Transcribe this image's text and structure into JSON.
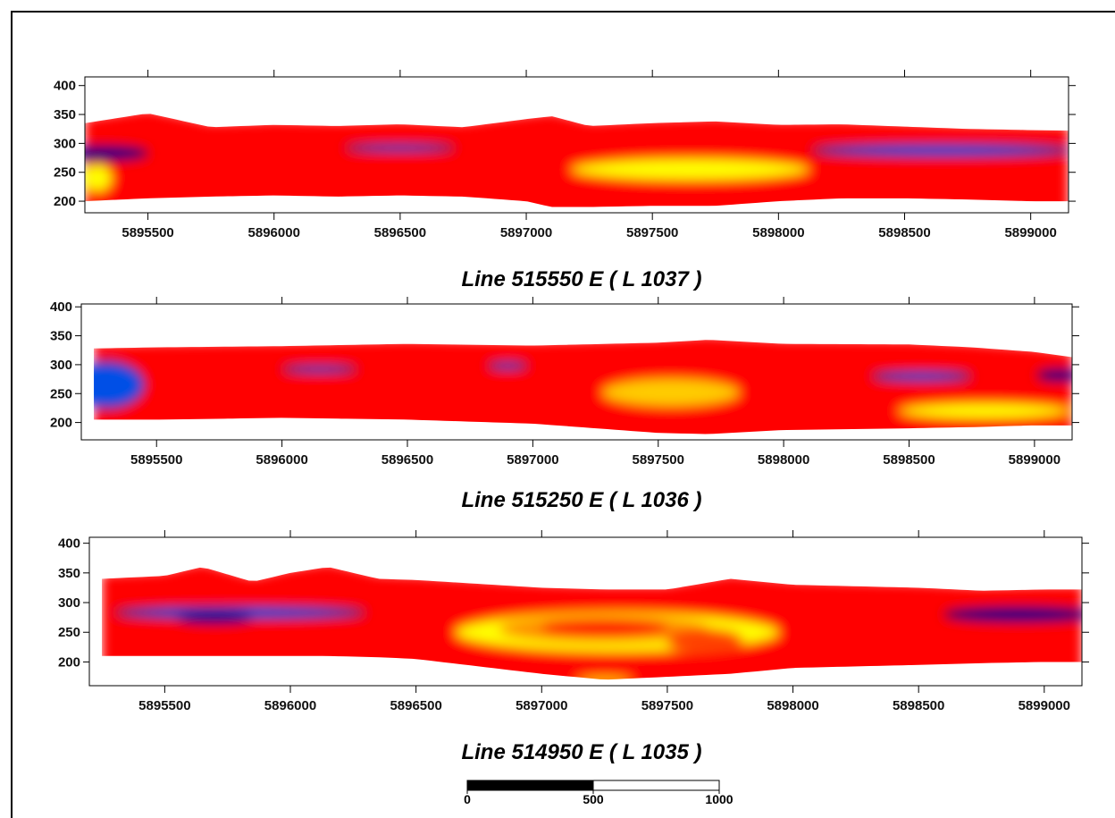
{
  "chart_data": [
    {
      "type": "heatmap",
      "title": "Line 515550 E ( L 1037 )",
      "xlim": [
        5895250,
        5899150
      ],
      "ylim": [
        180,
        415
      ],
      "x_ticks": [
        5895500,
        5896000,
        5896500,
        5897000,
        5897500,
        5898000,
        5898500,
        5899000
      ],
      "y_ticks": [
        200,
        250,
        300,
        350,
        400
      ],
      "colormap": [
        "#00008b",
        "#0050e6",
        "#00e5ee",
        "#00a000",
        "#009900",
        "#ffff00",
        "#ff8c00",
        "#ff0000"
      ],
      "surface_x": [
        5895250,
        5895500,
        5895750,
        5896000,
        5896250,
        5896500,
        5896750,
        5897000,
        5897100,
        5897250,
        5897500,
        5897750,
        5898000,
        5898250,
        5898500,
        5898750,
        5899000,
        5899150
      ],
      "surface_y": [
        335,
        352,
        328,
        332,
        330,
        333,
        328,
        342,
        347,
        330,
        335,
        338,
        332,
        333,
        329,
        325,
        323,
        322
      ],
      "bottom_y": [
        200,
        205,
        208,
        210,
        208,
        210,
        208,
        200,
        190,
        190,
        192,
        192,
        200,
        205,
        205,
        203,
        200,
        200
      ],
      "bands": [
        {
          "offsets": [
            0,
            10,
            20,
            30,
            55,
            70,
            85,
            105,
            125
          ],
          "colors": [
            "#ff0000",
            "#ff8c00",
            "#ffff00",
            "#009900",
            "#00e5ee",
            "#00e5ee",
            "#00a000",
            "#009900",
            "#00a000"
          ]
        }
      ],
      "anomalies": [
        {
          "kind": "conductor",
          "x": 5895320,
          "y": 283,
          "rx": 180,
          "ry": 12,
          "color": "#00008b"
        },
        {
          "kind": "conductor",
          "x": 5896500,
          "y": 292,
          "rx": 220,
          "ry": 6,
          "color": "#0050e6"
        },
        {
          "kind": "conductor",
          "x": 5898650,
          "y": 288,
          "rx": 520,
          "ry": 10,
          "color": "#0050e6"
        },
        {
          "kind": "resistor",
          "x": 5897650,
          "y": 255,
          "rx": 480,
          "ry": 20,
          "color": "#ffff00"
        },
        {
          "kind": "resistor",
          "x": 5895300,
          "y": 240,
          "rx": 60,
          "ry": 25,
          "color": "#ffff00"
        }
      ]
    },
    {
      "type": "heatmap",
      "title": "Line 515250 E ( L 1036 )",
      "xlim": [
        5895200,
        5899150
      ],
      "ylim": [
        170,
        405
      ],
      "x_ticks": [
        5895500,
        5896000,
        5896500,
        5897000,
        5897500,
        5898000,
        5898500,
        5899000
      ],
      "y_ticks": [
        200,
        250,
        300,
        350,
        400
      ],
      "surface_x": [
        5895250,
        5895500,
        5896000,
        5896500,
        5897000,
        5897500,
        5897700,
        5898000,
        5898500,
        5898750,
        5899000,
        5899150
      ],
      "surface_y": [
        328,
        330,
        332,
        336,
        333,
        338,
        343,
        336,
        335,
        330,
        322,
        313
      ],
      "bottom_y": [
        205,
        205,
        208,
        205,
        198,
        182,
        180,
        187,
        190,
        192,
        195,
        195
      ],
      "bands": [
        {
          "offsets": [
            0,
            8,
            18,
            28,
            60,
            80,
            100,
            125
          ],
          "colors": [
            "#ff0000",
            "#ff8c00",
            "#ffff00",
            "#009900",
            "#00e5ee",
            "#00d5dd",
            "#00a000",
            "#7ac800"
          ]
        }
      ],
      "anomalies": [
        {
          "kind": "conductor",
          "x": 5895300,
          "y": 265,
          "rx": 150,
          "ry": 40,
          "color": "#0050e6"
        },
        {
          "kind": "conductor",
          "x": 5896150,
          "y": 292,
          "rx": 150,
          "ry": 6,
          "color": "#0050e6"
        },
        {
          "kind": "conductor",
          "x": 5896900,
          "y": 298,
          "rx": 80,
          "ry": 5,
          "color": "#0050e6"
        },
        {
          "kind": "conductor",
          "x": 5898550,
          "y": 280,
          "rx": 200,
          "ry": 8,
          "color": "#0050e6"
        },
        {
          "kind": "conductor",
          "x": 5899100,
          "y": 282,
          "rx": 90,
          "ry": 10,
          "color": "#00008b"
        },
        {
          "kind": "resistor",
          "x": 5897550,
          "y": 252,
          "rx": 280,
          "ry": 25,
          "color": "#ffcc00"
        },
        {
          "kind": "resistor",
          "x": 5898800,
          "y": 220,
          "rx": 350,
          "ry": 15,
          "color": "#ffff00"
        }
      ]
    },
    {
      "type": "heatmap",
      "title": "Line 514950 E ( L 1035 )",
      "xlim": [
        5895200,
        5899150
      ],
      "ylim": [
        160,
        410
      ],
      "x_ticks": [
        5895500,
        5896000,
        5896500,
        5897000,
        5897500,
        5898000,
        5898500,
        5899000
      ],
      "y_ticks": [
        200,
        250,
        300,
        350,
        400
      ],
      "surface_x": [
        5895250,
        5895500,
        5895650,
        5895850,
        5896000,
        5896150,
        5896350,
        5896500,
        5897000,
        5897250,
        5897500,
        5897750,
        5898000,
        5898500,
        5898750,
        5899000,
        5899150
      ],
      "surface_y": [
        340,
        345,
        360,
        335,
        350,
        360,
        340,
        338,
        325,
        322,
        322,
        340,
        330,
        325,
        320,
        322,
        322
      ],
      "bottom_y": [
        210,
        210,
        210,
        210,
        210,
        210,
        208,
        205,
        180,
        170,
        175,
        180,
        190,
        195,
        198,
        200,
        200
      ],
      "bands": [
        {
          "offsets": [
            0,
            10,
            20,
            30,
            70,
            100,
            130
          ],
          "colors": [
            "#ff0000",
            "#ff8c00",
            "#ffff00",
            "#009900",
            "#00e5ee",
            "#00d5dd",
            "#00a000"
          ]
        }
      ],
      "anomalies": [
        {
          "kind": "conductor",
          "x": 5895800,
          "y": 283,
          "rx": 500,
          "ry": 10,
          "color": "#0050e6"
        },
        {
          "kind": "conductor",
          "x": 5895700,
          "y": 275,
          "rx": 150,
          "ry": 10,
          "color": "#00008b"
        },
        {
          "kind": "conductor",
          "x": 5898900,
          "y": 280,
          "rx": 300,
          "ry": 12,
          "color": "#00008b"
        },
        {
          "kind": "resistor",
          "x": 5897300,
          "y": 250,
          "rx": 650,
          "ry": 35,
          "color": "#ffff00"
        },
        {
          "kind": "resistor",
          "x": 5897250,
          "y": 255,
          "rx": 420,
          "ry": 22,
          "color": "#ff8c00"
        },
        {
          "kind": "resistor",
          "x": 5897250,
          "y": 258,
          "rx": 250,
          "ry": 12,
          "color": "#ff0000"
        },
        {
          "kind": "resistor",
          "x": 5897650,
          "y": 235,
          "rx": 150,
          "ry": 20,
          "color": "#ff4000"
        },
        {
          "kind": "resistor",
          "x": 5897250,
          "y": 170,
          "rx": 120,
          "ry": 4,
          "color": "#ffff00"
        }
      ]
    }
  ],
  "scale_bar": {
    "labels": [
      "0",
      "500",
      "1000"
    ],
    "values": [
      0,
      500,
      1000
    ]
  }
}
